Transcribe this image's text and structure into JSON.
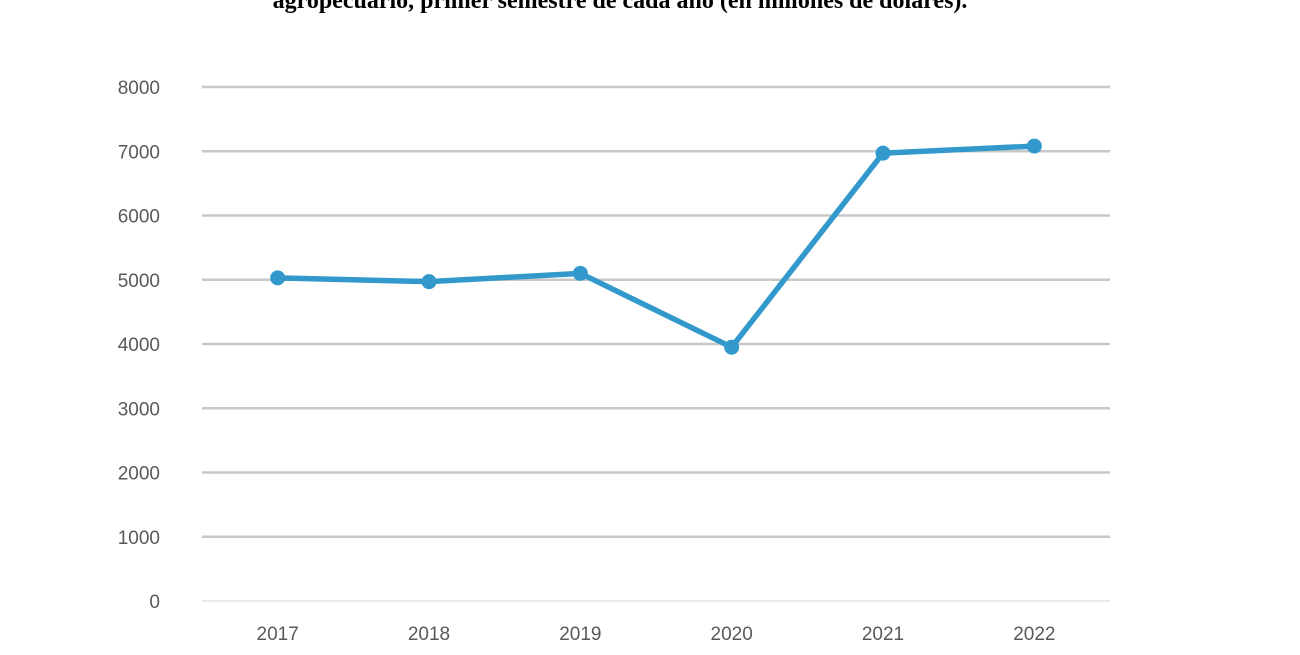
{
  "chart_data": {
    "type": "line",
    "title": "agropecuario, primer semestre de cada año (en millones de dólares).",
    "xlabel": "",
    "ylabel": "",
    "categories": [
      "2017",
      "2018",
      "2019",
      "2020",
      "2021",
      "2022"
    ],
    "series": [
      {
        "values": [
          5030,
          4970,
          5100,
          3950,
          6970,
          7080
        ]
      }
    ],
    "ylim": [
      0,
      8000
    ],
    "yticks": [
      "0",
      "1000",
      "2000",
      "3000",
      "4000",
      "5000",
      "6000",
      "7000",
      "8000"
    ],
    "grid": true,
    "legend": "none",
    "line_color": "#3399cc"
  }
}
